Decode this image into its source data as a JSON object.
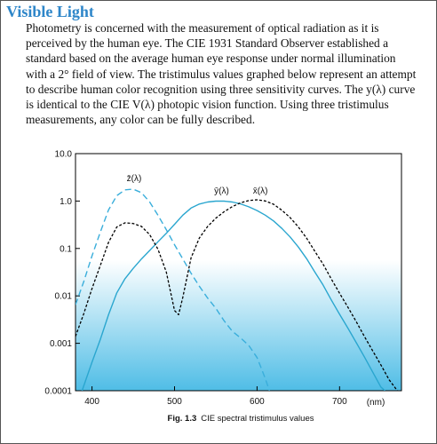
{
  "page": {
    "title": "Visible Light",
    "paragraph": "Photometry is concerned with the measurement of optical radiation as it is perceived by the human eye.  The CIE 1931 Standard Observer established a standard based on the average human eye response under normal illumination with a 2° field of view.  The tristimulus values graphed below represent an attempt to describe human color recognition using three sensitivity curves.  The y(λ) curve is identical to the CIE V(λ) photopic vision function.  Using three tristimulus measurements, any color can be fully described."
  },
  "chart_data": {
    "type": "line",
    "caption_prefix": "Fig. 1.3",
    "caption_text": "CIE spectral tristimulus values",
    "xlabel": "(nm)",
    "ylabel": "",
    "x_scale": "linear",
    "y_scale": "log",
    "xlim": [
      380,
      775
    ],
    "ylim": [
      0.0001,
      10
    ],
    "x_ticks": [
      400,
      500,
      600,
      700
    ],
    "x_tick_labels": [
      "400",
      "500",
      "600",
      "700"
    ],
    "y_ticks": [
      10,
      1,
      0.1,
      0.01,
      0.001,
      0.0001
    ],
    "y_tick_labels": [
      "10.0",
      "1.0",
      "0.1",
      "0.01",
      "0.001",
      "0.0001"
    ],
    "grid": false,
    "colors": {
      "plot_top": "#ffffff",
      "plot_bottom": "#4fbde6",
      "z_curve": "#3aaedb",
      "y_curve": "#2aa6cf",
      "x_curve": "#000000"
    },
    "series": [
      {
        "name": "z̄(λ)",
        "style": "dashed",
        "points": [
          [
            380,
            0.0065
          ],
          [
            390,
            0.02
          ],
          [
            400,
            0.07
          ],
          [
            410,
            0.22
          ],
          [
            420,
            0.65
          ],
          [
            430,
            1.3
          ],
          [
            440,
            1.72
          ],
          [
            450,
            1.78
          ],
          [
            460,
            1.5
          ],
          [
            470,
            0.95
          ],
          [
            480,
            0.5
          ],
          [
            490,
            0.25
          ],
          [
            500,
            0.12
          ],
          [
            510,
            0.06
          ],
          [
            520,
            0.03
          ],
          [
            530,
            0.016
          ],
          [
            540,
            0.009
          ],
          [
            550,
            0.0055
          ],
          [
            560,
            0.003
          ],
          [
            570,
            0.0018
          ],
          [
            580,
            0.0013
          ],
          [
            590,
            0.0009
          ],
          [
            600,
            0.0005
          ],
          [
            605,
            0.0003
          ],
          [
            610,
            0.00018
          ],
          [
            615,
            0.0001
          ]
        ]
      },
      {
        "name": "ȳ(λ)",
        "style": "solid",
        "points": [
          [
            388,
            0.0001
          ],
          [
            400,
            0.0004
          ],
          [
            410,
            0.0012
          ],
          [
            420,
            0.004
          ],
          [
            430,
            0.0116
          ],
          [
            440,
            0.023
          ],
          [
            450,
            0.038
          ],
          [
            460,
            0.06
          ],
          [
            470,
            0.091
          ],
          [
            480,
            0.139
          ],
          [
            490,
            0.208
          ],
          [
            500,
            0.323
          ],
          [
            510,
            0.503
          ],
          [
            520,
            0.71
          ],
          [
            530,
            0.862
          ],
          [
            540,
            0.954
          ],
          [
            550,
            0.995
          ],
          [
            560,
            0.995
          ],
          [
            570,
            0.952
          ],
          [
            580,
            0.87
          ],
          [
            590,
            0.757
          ],
          [
            600,
            0.631
          ],
          [
            610,
            0.503
          ],
          [
            620,
            0.381
          ],
          [
            630,
            0.265
          ],
          [
            640,
            0.175
          ],
          [
            650,
            0.107
          ],
          [
            660,
            0.061
          ],
          [
            670,
            0.032
          ],
          [
            680,
            0.017
          ],
          [
            690,
            0.0082
          ],
          [
            700,
            0.0041
          ],
          [
            710,
            0.0021
          ],
          [
            720,
            0.00105
          ],
          [
            730,
            0.00052
          ],
          [
            740,
            0.00025
          ],
          [
            750,
            0.00012
          ],
          [
            755,
            0.0001
          ]
        ]
      },
      {
        "name": "x̄(λ)",
        "style": "dotted",
        "points": [
          [
            380,
            0.0014
          ],
          [
            390,
            0.0042
          ],
          [
            400,
            0.0143
          ],
          [
            410,
            0.0435
          ],
          [
            420,
            0.1344
          ],
          [
            430,
            0.2839
          ],
          [
            440,
            0.3483
          ],
          [
            450,
            0.3362
          ],
          [
            460,
            0.2908
          ],
          [
            470,
            0.1954
          ],
          [
            480,
            0.0956
          ],
          [
            490,
            0.032
          ],
          [
            500,
            0.0049
          ],
          [
            505,
            0.004
          ],
          [
            510,
            0.0093
          ],
          [
            520,
            0.0633
          ],
          [
            530,
            0.1655
          ],
          [
            540,
            0.2904
          ],
          [
            550,
            0.4334
          ],
          [
            560,
            0.5945
          ],
          [
            570,
            0.7621
          ],
          [
            580,
            0.9163
          ],
          [
            590,
            1.0263
          ],
          [
            600,
            1.0622
          ],
          [
            610,
            1.0026
          ],
          [
            620,
            0.8544
          ],
          [
            630,
            0.6424
          ],
          [
            640,
            0.4479
          ],
          [
            650,
            0.2835
          ],
          [
            660,
            0.1649
          ],
          [
            670,
            0.0874
          ],
          [
            680,
            0.0468
          ],
          [
            690,
            0.0227
          ],
          [
            700,
            0.0114
          ],
          [
            710,
            0.0058
          ],
          [
            720,
            0.0029
          ],
          [
            730,
            0.0014
          ],
          [
            740,
            0.0007
          ],
          [
            750,
            0.00035
          ],
          [
            760,
            0.00017
          ],
          [
            770,
            0.0001
          ]
        ]
      }
    ],
    "series_labels": [
      {
        "text": "z̄(λ)",
        "x": 451,
        "y": 2.6
      },
      {
        "text": "ȳ(λ)",
        "x": 557,
        "y": 1.45
      },
      {
        "text": "x̄(λ)",
        "x": 604,
        "y": 1.45
      }
    ]
  }
}
